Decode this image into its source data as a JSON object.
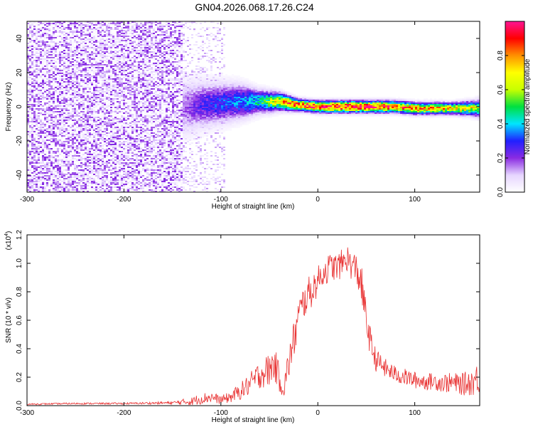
{
  "title": "GN04.2026.068.17.26.C24",
  "chart_data": [
    {
      "type": "heatmap",
      "xlabel": "Height of straight line (km)",
      "ylabel": "Frequency (Hz)",
      "xlim": [
        -300,
        167
      ],
      "ylim": [
        -50,
        50
      ],
      "xticks": [
        -300,
        -200,
        -100,
        0,
        100
      ],
      "yticks": [
        -40,
        -20,
        0,
        20,
        40
      ],
      "colorbar": {
        "label": "Normalized spectral amplitude",
        "range": [
          0,
          1
        ],
        "ticks": [
          "0.0",
          "0.2",
          "0.4",
          "0.6",
          "0.8"
        ],
        "colors": [
          "#ffffff",
          "#e6d5ff",
          "#8a2be2",
          "#2020ff",
          "#00e5ff",
          "#00e040",
          "#c8ff00",
          "#ffff00",
          "#ff9000",
          "#ff0000",
          "#ff1493"
        ]
      },
      "noise_region": {
        "x": [
          -300,
          -140
        ],
        "y": [
          -50,
          50
        ],
        "level": 0.1
      },
      "scattered_region": {
        "x": [
          -140,
          -95
        ],
        "y": [
          -50,
          50
        ],
        "level": 0.08
      },
      "ridge": {
        "x": [
          -140,
          -120,
          -100,
          -80,
          -60,
          -40,
          -30,
          -20,
          0,
          20,
          40,
          60,
          80,
          100,
          120,
          140,
          160,
          167
        ],
        "center": [
          -1,
          1,
          2,
          3,
          3,
          3,
          2,
          1,
          0,
          0,
          0,
          0,
          0,
          -1,
          -1,
          -1,
          -1,
          -1
        ],
        "amplitude": [
          0.15,
          0.25,
          0.3,
          0.35,
          0.45,
          0.7,
          0.8,
          0.85,
          0.9,
          0.95,
          0.95,
          0.92,
          0.85,
          0.8,
          0.75,
          0.7,
          0.65,
          0.5
        ],
        "halfwidth": [
          10,
          8,
          7,
          6,
          4,
          3,
          2.5,
          2,
          2,
          2,
          2,
          2,
          2,
          2,
          2,
          2,
          2.5,
          3
        ]
      }
    },
    {
      "type": "line",
      "xlabel": "Height of straight line (km)",
      "ylabel": "SNR (10 * v/v)",
      "multiplier_label": "(x10",
      "multiplier_exp": "4",
      "multiplier_close": ")",
      "xlim": [
        -300,
        167
      ],
      "ylim": [
        0,
        1.2
      ],
      "xticks": [
        -300,
        -200,
        -100,
        0,
        100
      ],
      "yticks": [
        "0.0",
        "0.2",
        "0.4",
        "0.6",
        "0.8",
        "1.0",
        "1.2"
      ],
      "series": [
        {
          "color": "#e83030",
          "x": [
            -300,
            -250,
            -200,
            -150,
            -130,
            -120,
            -110,
            -100,
            -90,
            -80,
            -70,
            -60,
            -50,
            -45,
            -40,
            -35,
            -30,
            -25,
            -20,
            -15,
            -10,
            -5,
            0,
            5,
            10,
            15,
            20,
            25,
            30,
            35,
            40,
            45,
            50,
            55,
            60,
            70,
            80,
            90,
            100,
            110,
            120,
            130,
            140,
            150,
            160,
            167
          ],
          "y": [
            0.01,
            0.015,
            0.015,
            0.02,
            0.03,
            0.05,
            0.06,
            0.04,
            0.06,
            0.1,
            0.15,
            0.22,
            0.25,
            0.3,
            0.2,
            0.12,
            0.3,
            0.45,
            0.62,
            0.72,
            0.78,
            0.82,
            0.88,
            0.93,
            0.96,
            0.98,
            0.97,
            1.0,
            1.04,
            0.98,
            0.96,
            0.85,
            0.6,
            0.42,
            0.32,
            0.26,
            0.22,
            0.2,
            0.18,
            0.17,
            0.17,
            0.16,
            0.16,
            0.15,
            0.17,
            0.2
          ],
          "noise": [
            0.005,
            0.006,
            0.006,
            0.01,
            0.03,
            0.04,
            0.04,
            0.03,
            0.04,
            0.06,
            0.08,
            0.1,
            0.12,
            0.12,
            0.1,
            0.08,
            0.12,
            0.14,
            0.14,
            0.12,
            0.12,
            0.12,
            0.1,
            0.1,
            0.1,
            0.1,
            0.1,
            0.1,
            0.1,
            0.1,
            0.12,
            0.14,
            0.12,
            0.1,
            0.08,
            0.07,
            0.06,
            0.06,
            0.06,
            0.06,
            0.06,
            0.07,
            0.07,
            0.08,
            0.1,
            0.12
          ]
        }
      ]
    }
  ]
}
